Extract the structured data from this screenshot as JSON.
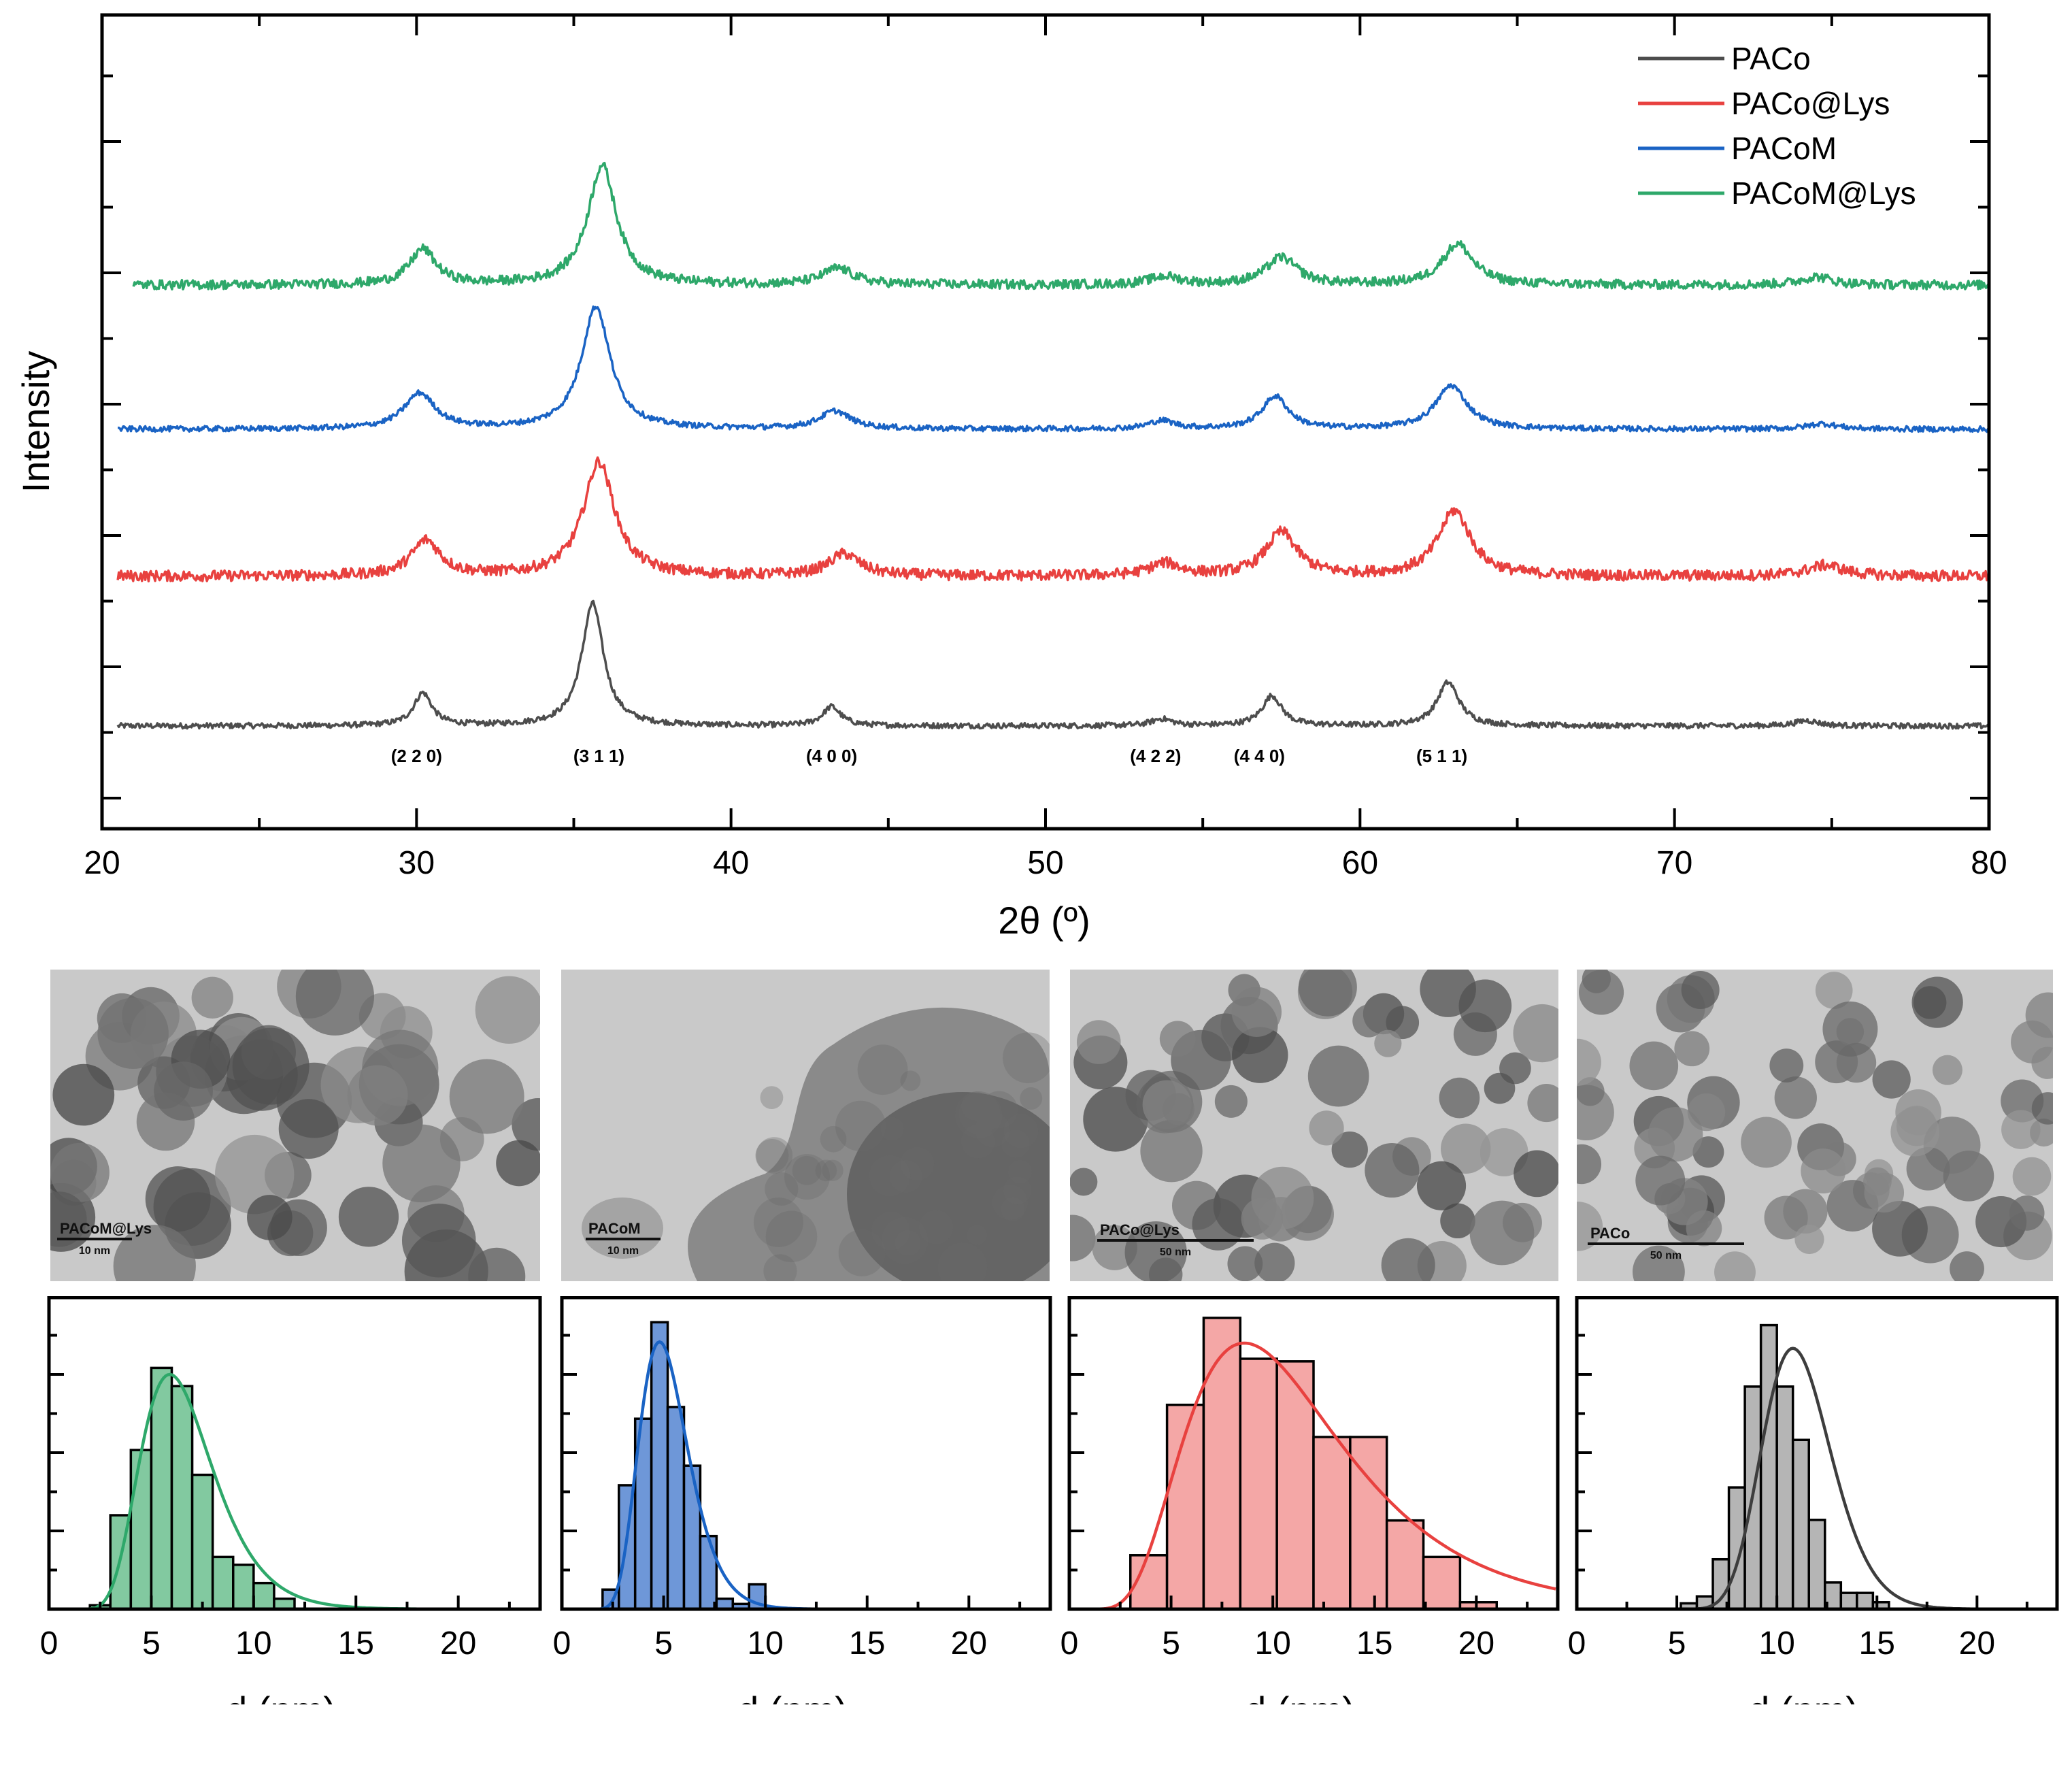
{
  "xrd": {
    "type": "line",
    "xlabel": "2θ (º)",
    "ylabel": "Intensity",
    "xlim": [
      20,
      80
    ],
    "xticks": [
      20,
      30,
      40,
      50,
      60,
      70,
      80
    ],
    "legend_position": "top-right",
    "series": [
      {
        "name": "PACo",
        "color": "#4d4d4d",
        "baseline": 0.0,
        "noise": 0.01,
        "start": 20.5,
        "peaks": [
          [
            30.2,
            0.12,
            0.35
          ],
          [
            35.6,
            0.45,
            0.42
          ],
          [
            43.2,
            0.07,
            0.35
          ],
          [
            53.7,
            0.025,
            0.4
          ],
          [
            57.2,
            0.11,
            0.38
          ],
          [
            62.8,
            0.16,
            0.42
          ],
          [
            74.2,
            0.02,
            0.45
          ]
        ]
      },
      {
        "name": "PACo@Lys",
        "color": "#e8413f",
        "baseline": 0.55,
        "noise": 0.02,
        "start": 20.5,
        "peaks": [
          [
            30.3,
            0.13,
            0.55
          ],
          [
            35.8,
            0.42,
            0.6
          ],
          [
            43.6,
            0.08,
            0.6
          ],
          [
            53.8,
            0.045,
            0.6
          ],
          [
            57.5,
            0.16,
            0.6
          ],
          [
            63.0,
            0.24,
            0.62
          ],
          [
            74.8,
            0.04,
            0.7
          ]
        ]
      },
      {
        "name": "PACoM",
        "color": "#1a63c4",
        "baseline": 1.09,
        "noise": 0.01,
        "start": 20.5,
        "peaks": [
          [
            30.1,
            0.13,
            0.6
          ],
          [
            35.7,
            0.45,
            0.55
          ],
          [
            43.3,
            0.065,
            0.6
          ],
          [
            53.7,
            0.03,
            0.5
          ],
          [
            57.3,
            0.12,
            0.5
          ],
          [
            62.9,
            0.16,
            0.6
          ],
          [
            74.7,
            0.02,
            0.6
          ]
        ]
      },
      {
        "name": "PACoM@Lys",
        "color": "#2ea86a",
        "baseline": 1.62,
        "noise": 0.017,
        "start": 21.0,
        "peaks": [
          [
            30.2,
            0.13,
            0.5
          ],
          [
            35.9,
            0.44,
            0.55
          ],
          [
            43.4,
            0.06,
            0.6
          ],
          [
            53.8,
            0.03,
            0.6
          ],
          [
            57.5,
            0.1,
            0.6
          ],
          [
            63.1,
            0.15,
            0.6
          ],
          [
            74.5,
            0.03,
            0.6
          ]
        ]
      }
    ],
    "reflections": [
      {
        "label": "(2 2 0)",
        "x": 30.0
      },
      {
        "label": "(3 1 1)",
        "x": 35.8
      },
      {
        "label": "(4 0 0)",
        "x": 43.2
      },
      {
        "label": "(4 2 2)",
        "x": 53.5
      },
      {
        "label": "(4 4 0)",
        "x": 56.8
      },
      {
        "label": "(5 1 1)",
        "x": 62.6
      }
    ]
  },
  "tem_images": [
    {
      "label": "PACoM@Lys",
      "scale": "10 nm"
    },
    {
      "label": "PACoM",
      "scale": "10 nm"
    },
    {
      "label": "PACo@Lys",
      "scale": "50 nm"
    },
    {
      "label": "PACo",
      "scale": "50 nm"
    }
  ],
  "chart_data": [
    {
      "type": "line",
      "title": "",
      "xlabel": "2θ (º)",
      "ylabel": "Intensity",
      "xlim": [
        20,
        80
      ],
      "series_names": [
        "PACo",
        "PACo@Lys",
        "PACoM",
        "PACoM@Lys"
      ],
      "peak_positions_2theta": [
        30.2,
        35.7,
        43.3,
        53.7,
        57.3,
        62.9
      ],
      "annotations": [
        "(2 2 0)",
        "(3 1 1)",
        "(4 0 0)",
        "(4 2 2)",
        "(4 4 0)",
        "(5 1 1)"
      ]
    },
    {
      "type": "bar",
      "series": "PACoM@Lys",
      "color": "#82c9a0",
      "fit_color": "#2ea86a",
      "xlabel": "d (nm)",
      "xlim": [
        0,
        24
      ],
      "xticks": [
        0,
        5,
        10,
        15,
        20
      ],
      "bin_start": 2.0,
      "bin_width": 1.0,
      "values": [
        0.3,
        7.2,
        12.2,
        18.5,
        17.1,
        10.3,
        4.0,
        3.4,
        2.0,
        0.8,
        0.0
      ],
      "fit_mode": 5.9,
      "fit_sigma": 0.3,
      "fit_peak": 18.0,
      "ylim": [
        0,
        24
      ]
    },
    {
      "type": "bar",
      "series": "PACoM",
      "color": "#6e97d8",
      "fit_color": "#1a63c4",
      "xlabel": "d (nm)",
      "xlim": [
        0,
        24
      ],
      "xticks": [
        0,
        5,
        10,
        15,
        20
      ],
      "bin_start": 2.0,
      "bin_width": 0.8,
      "values": [
        1.5,
        9.5,
        14.6,
        22.0,
        15.5,
        11.0,
        5.6,
        0.8,
        0.4,
        1.9
      ],
      "fit_mode": 4.8,
      "fit_sigma": 0.25,
      "fit_peak": 20.5,
      "ylim": [
        0,
        24
      ]
    },
    {
      "type": "bar",
      "series": "PACo@Lys",
      "color": "#f4a7a6",
      "fit_color": "#e8413f",
      "xlabel": "d (nm)",
      "xlim": [
        0,
        24
      ],
      "xticks": [
        0,
        5,
        10,
        15,
        20
      ],
      "bin_start": 3.0,
      "bin_width": 1.8,
      "values": [
        6.2,
        23.5,
        33.5,
        28.8,
        28.5,
        19.8,
        19.8,
        10.2,
        6.0,
        0.8
      ],
      "fit_mode": 8.6,
      "fit_sigma": 0.45,
      "fit_peak": 30.6,
      "ylim": [
        0,
        36
      ]
    },
    {
      "type": "bar",
      "series": "PACo",
      "color": "#b5b5b5",
      "fit_color": "#3d3d3d",
      "xlabel": "d (nm)",
      "xlim": [
        0,
        24
      ],
      "xticks": [
        0,
        5,
        10,
        15,
        20
      ],
      "bin_start": 5.2,
      "bin_width": 0.8,
      "values": [
        0.5,
        1.1,
        4.3,
        10.5,
        19.2,
        24.5,
        19.2,
        14.6,
        7.7,
        2.3,
        1.4,
        1.4,
        0.6
      ],
      "fit_mode": 10.8,
      "fit_sigma": 0.16,
      "fit_peak": 22.5,
      "ylim": [
        0,
        27
      ]
    }
  ]
}
